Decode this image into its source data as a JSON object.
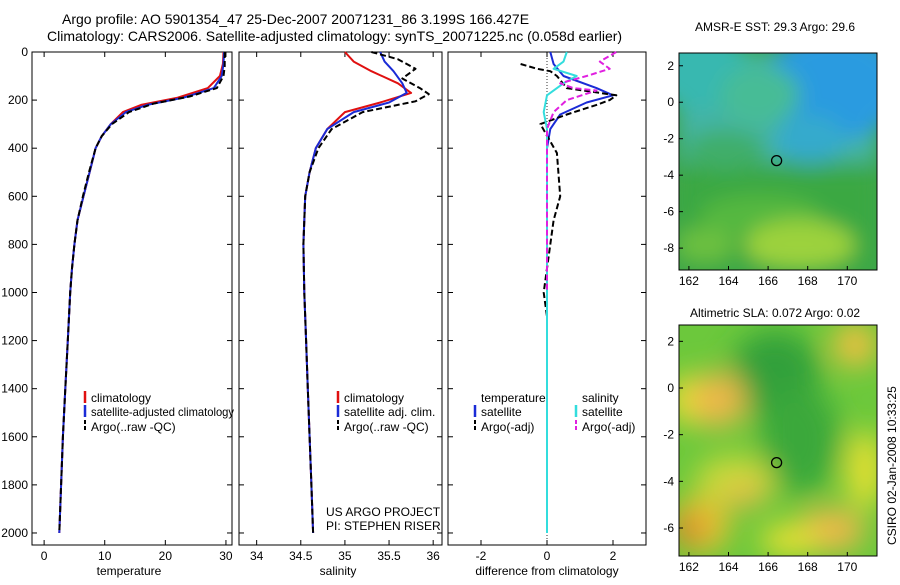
{
  "header": {
    "line1": "Argo profile: AO 5901354_47 25-Dec-2007 20071231_86 3.199S 166.427E",
    "line2": "Climatology: CARS2006. Satellite-adjusted climatology: synTS_20071225.nc (0.058d earlier)"
  },
  "footer": {
    "credit_line1": "US ARGO PROJECT",
    "credit_line2": "PI: STEPHEN RISER",
    "stamp": "CSIRO 02-Jan-2008 10:33:25"
  },
  "colors": {
    "climatology": "#e01010",
    "satellite": "#1a2bd6",
    "argo": "#000000",
    "salinity_satellite": "#33dddd",
    "salinity_argo": "#e020e0"
  },
  "chart_data": [
    {
      "type": "line",
      "panel": "temperature",
      "xlabel": "temperature",
      "ylabel": "",
      "xlim": [
        -2,
        31
      ],
      "ylim": [
        2050,
        0
      ],
      "xticks": [
        0,
        10,
        20,
        30
      ],
      "yticks": [
        0,
        200,
        400,
        600,
        800,
        1000,
        1200,
        1400,
        1600,
        1800,
        2000
      ],
      "legend": [
        "climatology",
        "satellite-adjusted climatology",
        "Argo(..raw -QC)"
      ],
      "series": [
        {
          "name": "climatology",
          "style": "solid",
          "color": "#e01010",
          "points": [
            [
              29.6,
              0
            ],
            [
              29.5,
              50
            ],
            [
              29.0,
              100
            ],
            [
              27,
              150
            ],
            [
              22,
              190
            ],
            [
              16,
              220
            ],
            [
              13,
              250
            ],
            [
              11,
              300
            ],
            [
              9.5,
              350
            ],
            [
              8.5,
              400
            ],
            [
              7.5,
              500
            ],
            [
              6.5,
              600
            ],
            [
              5.5,
              700
            ],
            [
              5,
              800
            ],
            [
              4.6,
              900
            ],
            [
              4.3,
              1000
            ],
            [
              3.9,
              1200
            ],
            [
              3.5,
              1400
            ],
            [
              3.1,
              1600
            ],
            [
              2.8,
              1800
            ],
            [
              2.5,
              2000
            ]
          ]
        },
        {
          "name": "satellite-adjusted climatology",
          "style": "solid",
          "color": "#1a2bd6",
          "points": [
            [
              29.7,
              0
            ],
            [
              29.6,
              50
            ],
            [
              29.3,
              100
            ],
            [
              28,
              150
            ],
            [
              23,
              190
            ],
            [
              17,
              220
            ],
            [
              13.5,
              250
            ],
            [
              11,
              300
            ],
            [
              9.5,
              350
            ],
            [
              8.5,
              400
            ],
            [
              7.5,
              500
            ],
            [
              6.5,
              600
            ],
            [
              5.5,
              700
            ],
            [
              5,
              800
            ],
            [
              4.6,
              900
            ],
            [
              4.3,
              1000
            ],
            [
              3.9,
              1200
            ],
            [
              3.5,
              1400
            ],
            [
              3.1,
              1600
            ],
            [
              2.8,
              1800
            ],
            [
              2.5,
              2000
            ]
          ]
        },
        {
          "name": "Argo(..raw -QC)",
          "style": "dashed",
          "color": "#000000",
          "points": [
            [
              29.8,
              0
            ],
            [
              29.8,
              60
            ],
            [
              29.6,
              100
            ],
            [
              28.5,
              150
            ],
            [
              24,
              185
            ],
            [
              18,
              215
            ],
            [
              14,
              250
            ],
            [
              11.2,
              300
            ],
            [
              9.5,
              350
            ],
            [
              8.5,
              400
            ],
            [
              7.4,
              500
            ],
            [
              6.4,
              600
            ],
            [
              5.5,
              700
            ],
            [
              5,
              800
            ],
            [
              4.6,
              900
            ],
            [
              4.3,
              1000
            ],
            [
              3.9,
              1200
            ],
            [
              3.5,
              1400
            ],
            [
              3.1,
              1600
            ],
            [
              2.8,
              1800
            ],
            [
              2.5,
              2000
            ]
          ]
        }
      ]
    },
    {
      "type": "line",
      "panel": "salinity",
      "xlabel": "salinity",
      "ylabel": "",
      "xlim": [
        33.8,
        36.1
      ],
      "ylim": [
        2050,
        0
      ],
      "xticks": [
        34,
        34.5,
        35,
        35.5,
        36
      ],
      "yticks": [
        0,
        200,
        400,
        600,
        800,
        1000,
        1200,
        1400,
        1600,
        1800,
        2000
      ],
      "legend": [
        "climatology",
        "satellite adj. clim.",
        "Argo(..raw -QC)"
      ],
      "series": [
        {
          "name": "climatology",
          "style": "solid",
          "color": "#e01010",
          "points": [
            [
              35.0,
              0
            ],
            [
              35.1,
              40
            ],
            [
              35.3,
              80
            ],
            [
              35.6,
              130
            ],
            [
              35.75,
              170
            ],
            [
              35.4,
              210
            ],
            [
              35.0,
              250
            ],
            [
              34.8,
              320
            ],
            [
              34.67,
              400
            ],
            [
              34.6,
              500
            ],
            [
              34.55,
              600
            ],
            [
              34.53,
              800
            ],
            [
              34.54,
              1000
            ],
            [
              34.56,
              1200
            ],
            [
              34.58,
              1400
            ],
            [
              34.6,
              1600
            ],
            [
              34.62,
              1800
            ],
            [
              34.64,
              2000
            ]
          ]
        },
        {
          "name": "satellite adj. clim.",
          "style": "solid",
          "color": "#1a2bd6",
          "points": [
            [
              35.4,
              0
            ],
            [
              35.45,
              40
            ],
            [
              35.55,
              80
            ],
            [
              35.65,
              130
            ],
            [
              35.7,
              170
            ],
            [
              35.5,
              210
            ],
            [
              35.1,
              250
            ],
            [
              34.8,
              320
            ],
            [
              34.67,
              400
            ],
            [
              34.6,
              500
            ],
            [
              34.55,
              600
            ],
            [
              34.53,
              800
            ],
            [
              34.54,
              1000
            ],
            [
              34.56,
              1200
            ],
            [
              34.58,
              1400
            ],
            [
              34.6,
              1600
            ],
            [
              34.62,
              1800
            ],
            [
              34.64,
              2000
            ]
          ]
        },
        {
          "name": "Argo(..raw -QC)",
          "style": "dashed",
          "color": "#000000",
          "points": [
            [
              35.3,
              0
            ],
            [
              35.6,
              30
            ],
            [
              35.8,
              70
            ],
            [
              35.65,
              110
            ],
            [
              35.85,
              150
            ],
            [
              35.95,
              175
            ],
            [
              35.8,
              205
            ],
            [
              35.2,
              250
            ],
            [
              34.85,
              320
            ],
            [
              34.7,
              400
            ],
            [
              34.6,
              500
            ],
            [
              34.55,
              600
            ],
            [
              34.53,
              800
            ],
            [
              34.54,
              1000
            ],
            [
              34.56,
              1200
            ],
            [
              34.58,
              1400
            ],
            [
              34.6,
              1600
            ],
            [
              34.62,
              1800
            ],
            [
              34.64,
              2000
            ]
          ]
        }
      ]
    },
    {
      "type": "line",
      "panel": "difference",
      "xlabel": "difference from climatology",
      "ylabel": "",
      "xlim": [
        -3,
        3
      ],
      "ylim": [
        2050,
        0
      ],
      "xticks": [
        -2,
        0,
        2
      ],
      "yticks": [
        0,
        200,
        400,
        600,
        800,
        1000,
        1200,
        1400,
        1600,
        1800,
        2000
      ],
      "legend": [
        "temperature",
        "satellite",
        "Argo(-adj)",
        "salinity",
        "satellite",
        "Argo(-adj)"
      ],
      "series": [
        {
          "name": "temperature satellite",
          "style": "solid",
          "color": "#1a2bd6",
          "points": [
            [
              0.1,
              0
            ],
            [
              0.2,
              50
            ],
            [
              0.5,
              100
            ],
            [
              1.5,
              150
            ],
            [
              2.0,
              180
            ],
            [
              1.2,
              210
            ],
            [
              0.4,
              260
            ],
            [
              0.1,
              320
            ],
            [
              0,
              400
            ],
            [
              0,
              600
            ],
            [
              0,
              800
            ],
            [
              0,
              1000
            ],
            [
              0,
              1200
            ],
            [
              0,
              1400
            ],
            [
              0,
              1600
            ],
            [
              0,
              1800
            ],
            [
              0,
              2000
            ]
          ]
        },
        {
          "name": "temperature Argo(-adj)",
          "style": "dashed",
          "color": "#000000",
          "points": [
            [
              -0.8,
              50
            ],
            [
              -0.3,
              70
            ],
            [
              0.1,
              80
            ],
            [
              0.3,
              100
            ],
            [
              0.6,
              150
            ],
            [
              2.1,
              180
            ],
            [
              1.9,
              200
            ],
            [
              1.5,
              220
            ],
            [
              0.6,
              260
            ],
            [
              -0.2,
              300
            ],
            [
              0.3,
              420
            ],
            [
              0.4,
              600
            ],
            [
              0.2,
              700
            ],
            [
              0.1,
              800
            ],
            [
              0,
              900
            ],
            [
              -0.1,
              1000
            ],
            [
              0,
              1100
            ],
            [
              0,
              1200
            ],
            [
              0,
              1400
            ],
            [
              0,
              1600
            ],
            [
              0,
              1800
            ],
            [
              0,
              2000
            ]
          ]
        },
        {
          "name": "salinity satellite",
          "style": "solid",
          "color": "#33dddd",
          "points": [
            [
              0.6,
              0
            ],
            [
              0.5,
              40
            ],
            [
              0.2,
              70
            ],
            [
              0.9,
              100
            ],
            [
              0.5,
              130
            ],
            [
              0,
              180
            ],
            [
              -0.1,
              250
            ],
            [
              0,
              320
            ],
            [
              0,
              400
            ],
            [
              0,
              600
            ],
            [
              0,
              800
            ],
            [
              0,
              1000
            ],
            [
              0,
              1200
            ],
            [
              0,
              1400
            ],
            [
              0,
              1600
            ],
            [
              0,
              1800
            ],
            [
              0,
              2000
            ]
          ]
        },
        {
          "name": "salinity Argo(-adj)",
          "style": "dashed",
          "color": "#e020e0",
          "points": [
            [
              2.1,
              0
            ],
            [
              1.6,
              40
            ],
            [
              1.9,
              70
            ],
            [
              1.2,
              100
            ],
            [
              0.4,
              130
            ],
            [
              0.8,
              150
            ],
            [
              1.5,
              160
            ],
            [
              0.6,
              200
            ],
            [
              0.2,
              250
            ],
            [
              0,
              320
            ],
            [
              0,
              400
            ],
            [
              0,
              600
            ],
            [
              0,
              800
            ],
            [
              0,
              1000
            ]
          ]
        }
      ]
    },
    {
      "type": "heatmap",
      "panel": "sst_map",
      "title": "AMSR-E SST: 29.3 Argo: 29.6",
      "xlim": [
        161.5,
        171.5
      ],
      "ylim": [
        -9.2,
        2.7
      ],
      "xticks": [
        162,
        164,
        166,
        168,
        170
      ],
      "yticks": [
        2,
        0,
        -2,
        -4,
        -6,
        -8
      ],
      "marker": {
        "lon": 166.427,
        "lat": -3.199
      }
    },
    {
      "type": "heatmap",
      "panel": "sla_map",
      "title": "Altimetric SLA: 0.072 Argo: 0.02",
      "xlim": [
        161.5,
        171.5
      ],
      "ylim": [
        -7.2,
        2.7
      ],
      "xticks": [
        162,
        164,
        166,
        168,
        170
      ],
      "yticks": [
        2,
        0,
        -2,
        -4,
        -6
      ],
      "marker": {
        "lon": 166.427,
        "lat": -3.199
      }
    }
  ]
}
